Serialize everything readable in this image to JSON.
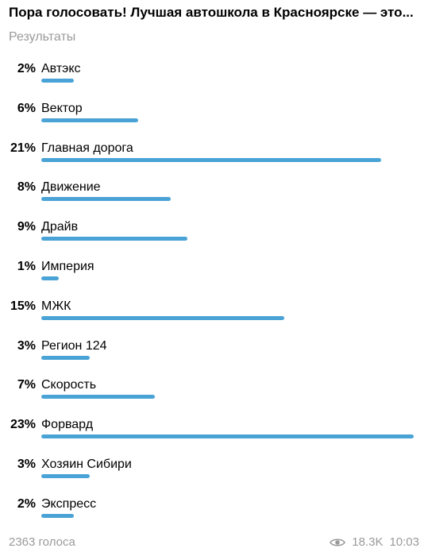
{
  "poll": {
    "title": "Пора голосовать! Лучшая автошкола в Красноярске — это...",
    "subtitle": "Результаты",
    "bar_color": "#4aa3d6",
    "options": [
      {
        "percent": "2%",
        "label": "Автэкс",
        "value": 2
      },
      {
        "percent": "6%",
        "label": "Вектор",
        "value": 6
      },
      {
        "percent": "21%",
        "label": "Главная дорога",
        "value": 21
      },
      {
        "percent": "8%",
        "label": "Движение",
        "value": 8
      },
      {
        "percent": "9%",
        "label": "Драйв",
        "value": 9
      },
      {
        "percent": "1%",
        "label": "Империя",
        "value": 1
      },
      {
        "percent": "15%",
        "label": "МЖК",
        "value": 15
      },
      {
        "percent": "3%",
        "label": "Регион 124",
        "value": 3
      },
      {
        "percent": "7%",
        "label": "Скорость",
        "value": 7
      },
      {
        "percent": "23%",
        "label": "Форвард",
        "value": 23
      },
      {
        "percent": "3%",
        "label": "Хозяин Сибири",
        "value": 3
      },
      {
        "percent": "2%",
        "label": "Экспресс",
        "value": 2
      }
    ]
  },
  "footer": {
    "votes": "2363 голоса",
    "views_icon": "eye-icon",
    "views": "18.3K",
    "time": "10:03"
  }
}
